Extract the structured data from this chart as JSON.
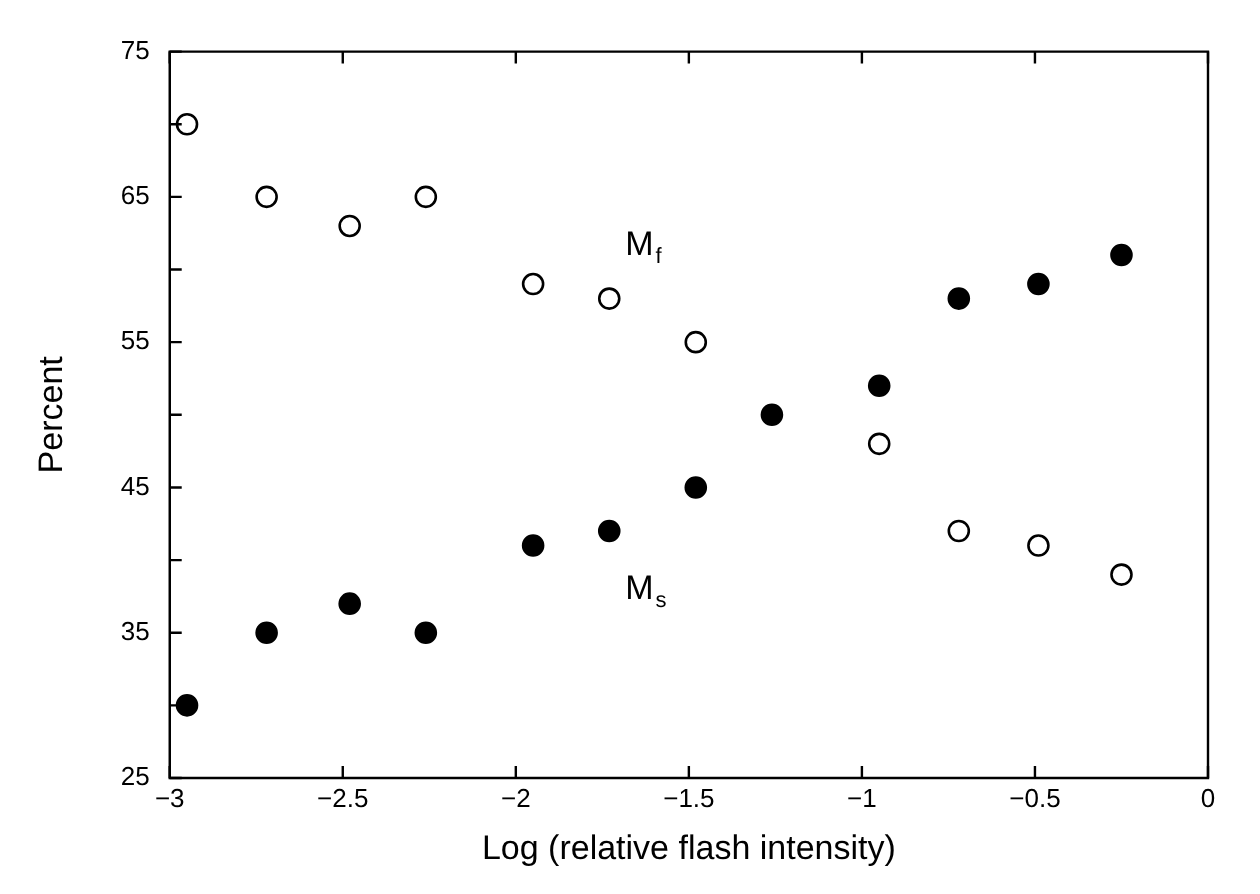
{
  "chart_data": {
    "type": "scatter",
    "xlabel": "Log (relative flash intensity)",
    "ylabel": "Percent",
    "marker": "circle",
    "grid": false,
    "legend": false,
    "xlim": [
      -3,
      0
    ],
    "xticks": [
      -3,
      -2.5,
      -2,
      -1.5,
      -1,
      -0.5,
      0
    ],
    "ylim": [
      25,
      75
    ],
    "yticks": [
      25,
      {
        "value": 30,
        "label": null
      },
      35,
      {
        "value": 40,
        "label": null
      },
      45,
      {
        "value": 50,
        "label": null
      },
      55,
      {
        "value": 60,
        "label": null
      },
      65,
      {
        "value": 70,
        "label": null
      },
      75
    ],
    "series": [
      {
        "name": "M$_{f}$",
        "color": "#000000",
        "x": [
          -2.95,
          -2.72,
          -2.48,
          -2.26,
          -1.95,
          -1.73,
          -1.48,
          -0.95,
          -0.72,
          -0.49,
          -0.25
        ],
        "values": [
          70,
          65,
          63,
          65,
          59,
          58,
          55,
          48,
          42,
          41,
          39
        ]
      },
      {
        "name": "M$_{s}$",
        "color": "#000000",
        "x": [
          -2.95,
          -2.72,
          -2.48,
          -2.26,
          -1.95,
          -1.73,
          -1.48,
          -1.26,
          -0.95,
          -0.72,
          -0.49,
          -0.25
        ],
        "values": [
          30,
          35,
          37,
          35,
          41,
          42,
          45,
          50,
          52,
          58,
          59,
          61
        ]
      }
    ]
  }
}
